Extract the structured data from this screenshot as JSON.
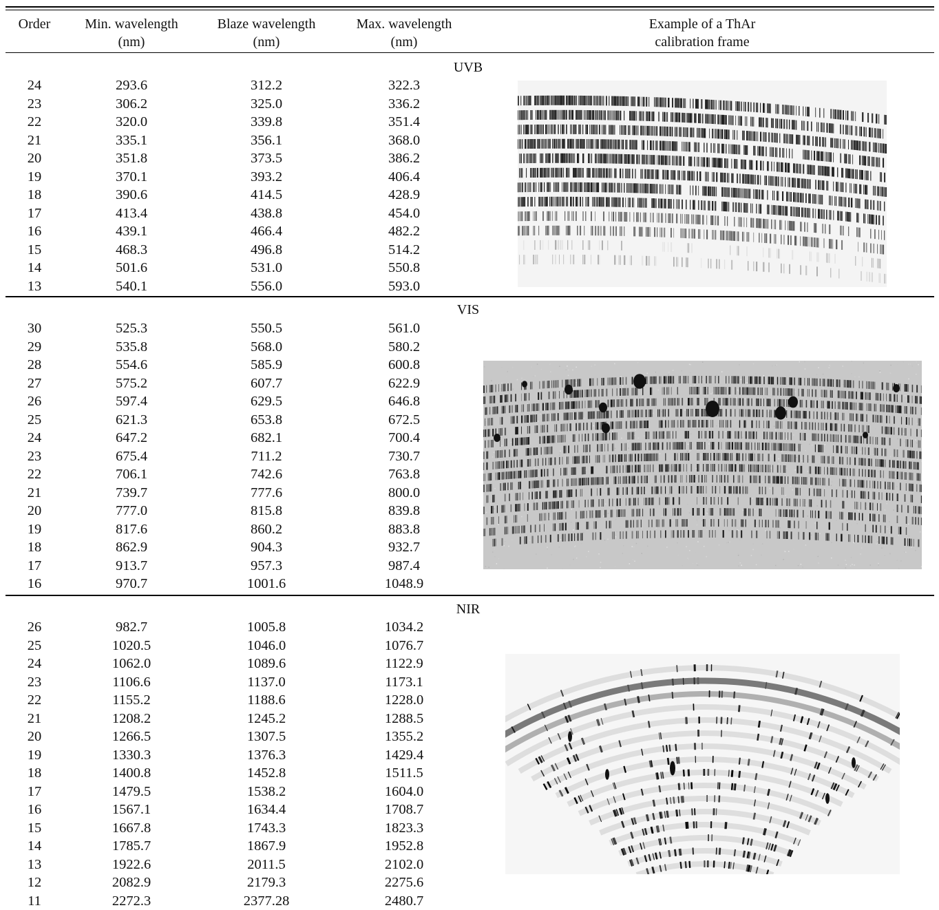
{
  "table": {
    "headers": {
      "order": "Order",
      "min_1": "Min. wavelength",
      "min_2": "(nm)",
      "blaze_1": "Blaze wavelength",
      "blaze_2": "(nm)",
      "max_1": "Max. wavelength",
      "max_2": "(nm)",
      "example_1": "Example of a ThAr",
      "example_2": "calibration frame"
    },
    "sections": [
      {
        "name": "UVB",
        "rows": [
          [
            "24",
            "293.6",
            "312.2",
            "322.3"
          ],
          [
            "23",
            "306.2",
            "325.0",
            "336.2"
          ],
          [
            "22",
            "320.0",
            "339.8",
            "351.4"
          ],
          [
            "21",
            "335.1",
            "356.1",
            "368.0"
          ],
          [
            "20",
            "351.8",
            "373.5",
            "386.2"
          ],
          [
            "19",
            "370.1",
            "393.2",
            "406.4"
          ],
          [
            "18",
            "390.6",
            "414.5",
            "428.9"
          ],
          [
            "17",
            "413.4",
            "438.8",
            "454.0"
          ],
          [
            "16",
            "439.1",
            "466.4",
            "482.2"
          ],
          [
            "15",
            "468.3",
            "496.8",
            "514.2"
          ],
          [
            "14",
            "501.6",
            "531.0",
            "550.8"
          ],
          [
            "13",
            "540.1",
            "556.0",
            "593.0"
          ]
        ]
      },
      {
        "name": "VIS",
        "rows": [
          [
            "30",
            "525.3",
            "550.5",
            "561.0"
          ],
          [
            "29",
            "535.8",
            "568.0",
            "580.2"
          ],
          [
            "28",
            "554.6",
            "585.9",
            "600.8"
          ],
          [
            "27",
            "575.2",
            "607.7",
            "622.9"
          ],
          [
            "26",
            "597.4",
            "629.5",
            "646.8"
          ],
          [
            "25",
            "621.3",
            "653.8",
            "672.5"
          ],
          [
            "24",
            "647.2",
            "682.1",
            "700.4"
          ],
          [
            "23",
            "675.4",
            "711.2",
            "730.7"
          ],
          [
            "22",
            "706.1",
            "742.6",
            "763.8"
          ],
          [
            "21",
            "739.7",
            "777.6",
            "800.0"
          ],
          [
            "20",
            "777.0",
            "815.8",
            "839.8"
          ],
          [
            "19",
            "817.6",
            "860.2",
            "883.8"
          ],
          [
            "18",
            "862.9",
            "904.3",
            "932.7"
          ],
          [
            "17",
            "913.7",
            "957.3",
            "987.4"
          ],
          [
            "16",
            "970.7",
            "1001.6",
            "1048.9"
          ]
        ]
      },
      {
        "name": "NIR",
        "rows": [
          [
            "26",
            "982.7",
            "1005.8",
            "1034.2"
          ],
          [
            "25",
            "1020.5",
            "1046.0",
            "1076.7"
          ],
          [
            "24",
            "1062.0",
            "1089.6",
            "1122.9"
          ],
          [
            "23",
            "1106.6",
            "1137.0",
            "1173.1"
          ],
          [
            "22",
            "1155.2",
            "1188.6",
            "1228.0"
          ],
          [
            "21",
            "1208.2",
            "1245.2",
            "1288.5"
          ],
          [
            "20",
            "1266.5",
            "1307.5",
            "1355.2"
          ],
          [
            "19",
            "1330.3",
            "1376.3",
            "1429.4"
          ],
          [
            "18",
            "1400.8",
            "1452.8",
            "1511.5"
          ],
          [
            "17",
            "1479.5",
            "1538.2",
            "1604.0"
          ],
          [
            "16",
            "1567.1",
            "1634.4",
            "1708.7"
          ],
          [
            "15",
            "1667.8",
            "1743.3",
            "1823.3"
          ],
          [
            "14",
            "1785.7",
            "1867.9",
            "1952.8"
          ],
          [
            "13",
            "1922.6",
            "2011.5",
            "2102.0"
          ],
          [
            "12",
            "2082.9",
            "2179.3",
            "2275.6"
          ],
          [
            "11",
            "2272.3",
            "2377.28",
            "2480.7"
          ]
        ]
      }
    ]
  }
}
